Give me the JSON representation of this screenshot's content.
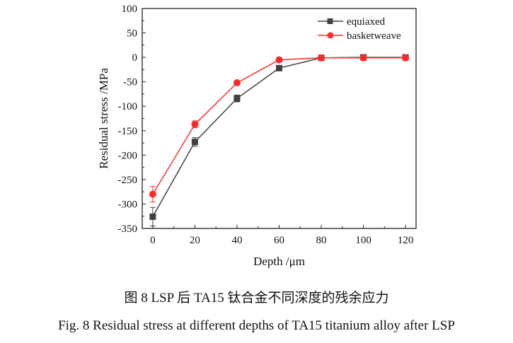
{
  "chart_data": {
    "type": "line",
    "xlabel": "Depth /μm",
    "ylabel": "Residual stress /MPa",
    "xlim": [
      -5,
      125
    ],
    "ylim": [
      -350,
      100
    ],
    "xticks": [
      0,
      20,
      40,
      60,
      80,
      100,
      120
    ],
    "yticks": [
      100,
      50,
      0,
      -50,
      -100,
      -150,
      -200,
      -250,
      -300,
      -350
    ],
    "legend_position": "top-right",
    "grid": false,
    "x": [
      0,
      20,
      40,
      60,
      80,
      100,
      120
    ],
    "series": [
      {
        "name": "equiaxed",
        "color": "#404040",
        "marker": "square",
        "values": [
          -326,
          -173,
          -84,
          -22,
          -1,
          0,
          0
        ],
        "errors": [
          19,
          9,
          7,
          3,
          1,
          1,
          1
        ]
      },
      {
        "name": "basketweave",
        "color": "#ff2a2a",
        "marker": "circle",
        "values": [
          -280,
          -137,
          -52,
          -5,
          -1,
          -1,
          -1
        ],
        "errors": [
          16,
          7,
          4,
          2,
          1,
          1,
          1
        ]
      }
    ]
  },
  "caption_cn": "图 8 LSP 后 TA15 钛合金不同深度的残余应力",
  "caption_en": "Fig. 8 Residual stress at different depths of TA15 titanium alloy after LSP"
}
